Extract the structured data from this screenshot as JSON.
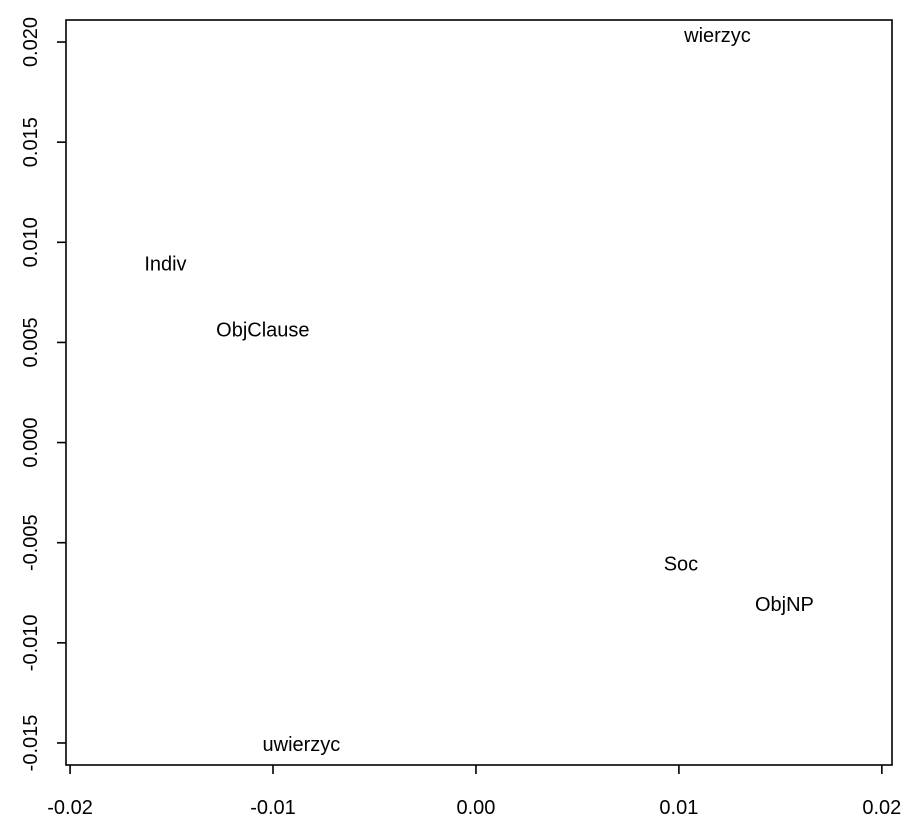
{
  "chart_data": {
    "type": "scatter",
    "title": "",
    "xlabel": "",
    "ylabel": "",
    "xlim": [
      -0.0202,
      0.0205
    ],
    "ylim": [
      -0.0161,
      0.0211
    ],
    "x_ticks": [
      -0.02,
      -0.01,
      0.0,
      0.01,
      0.02
    ],
    "x_tick_labels": [
      "-0.02",
      "-0.01",
      "0.00",
      "0.01",
      "0.02"
    ],
    "y_ticks": [
      -0.015,
      -0.01,
      -0.005,
      0.0,
      0.005,
      0.01,
      0.015,
      0.02
    ],
    "y_tick_labels": [
      "-0.015",
      "-0.010",
      "-0.005",
      "0.000",
      "0.005",
      "0.010",
      "0.015",
      "0.020"
    ],
    "grid": false,
    "points": [
      {
        "label": "wierzyc",
        "x": 0.0119,
        "y": 0.0203
      },
      {
        "label": "Indiv",
        "x": -0.0153,
        "y": 0.0089
      },
      {
        "label": "ObjClause",
        "x": -0.0105,
        "y": 0.0056
      },
      {
        "label": "Soc",
        "x": 0.0101,
        "y": -0.0061
      },
      {
        "label": "ObjNP",
        "x": 0.0152,
        "y": -0.0081
      },
      {
        "label": "uwierzyc",
        "x": -0.0086,
        "y": -0.0151
      }
    ]
  }
}
